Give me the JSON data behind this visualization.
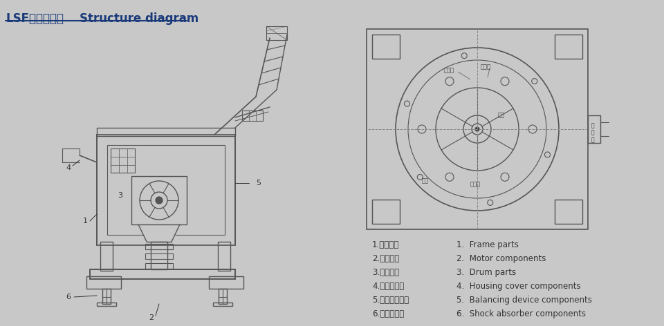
{
  "title_cn": "LSF系列结构图",
  "title_en": "Structure diagram",
  "background_color": "#c8c8c8",
  "line_color": "#555555",
  "dark_line": "#333333",
  "text_color": "#555555",
  "title_color": "#1a3a7a",
  "legend_items_cn": [
    "1.机座部件",
    "2.电机部件",
    "3.转鼓部件",
    "4.机壳盖部件",
    "5.平衡装置部件",
    "6.减震器部件"
  ],
  "legend_items_en": [
    "1.  Frame parts",
    "2.  Motor components",
    "3.  Drum parts",
    "4.  Housing cover components",
    "5.  Balancing device components",
    "6.  Shock absorber components"
  ]
}
